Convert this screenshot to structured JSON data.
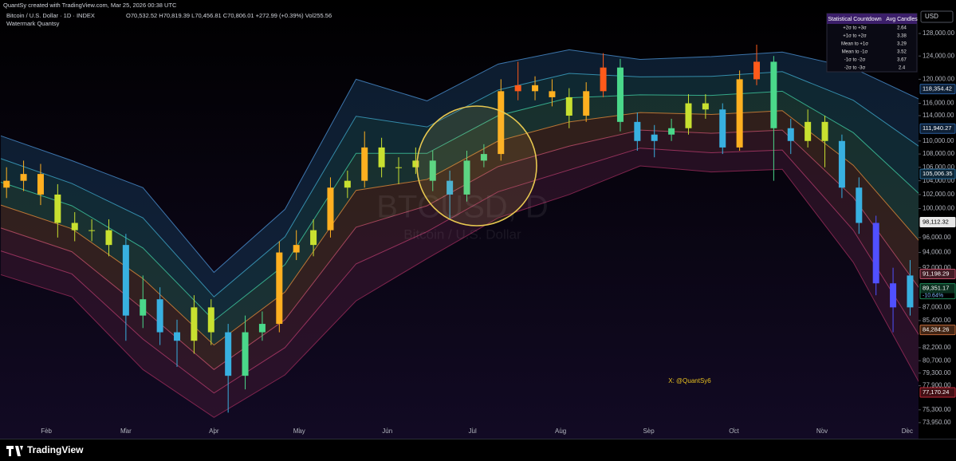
{
  "header": {
    "credit": "QuantSy created with TradingView.com, Mar 25, 2026 00:38 UTC",
    "symbol": "Bitcoin / U.S. Dollar · 1D · INDEX",
    "ohlc": "O70,532.52 H70,819.39 L70,456.81 C70,806.01 +272.99 (+0.39%) Vol255.56",
    "indicator": "Watermark Quantsy"
  },
  "watermark": {
    "symbol": "BTCUSD, D",
    "name": "Bitcoin / U.S. Dollar"
  },
  "currency": "USD",
  "annotation": "X: @QuantSy6",
  "footer": {
    "brand": "TradingView"
  },
  "table": {
    "headers": [
      "Statistical Countdown",
      "Avg Candles"
    ],
    "rows": [
      [
        "+2σ to +3σ",
        2.64
      ],
      [
        "+1σ to +2σ",
        3.38
      ],
      [
        "Mean to +1σ",
        3.29
      ],
      [
        "Mean to -1σ",
        3.52
      ],
      [
        "-1σ to -2σ",
        3.67
      ],
      [
        "-2σ to -3σ",
        2.4
      ]
    ]
  },
  "chart_data": {
    "type": "candlestick",
    "log": true,
    "grid": false,
    "xlim": [
      14.7,
      337.4
    ],
    "xticks": [
      {
        "value": 31,
        "label": "Feb"
      },
      {
        "value": 59,
        "label": "Mar"
      },
      {
        "value": 90,
        "label": "Apr"
      },
      {
        "value": 120,
        "label": "May"
      },
      {
        "value": 151,
        "label": "Jun"
      },
      {
        "value": 181,
        "label": "Jul"
      },
      {
        "value": 212,
        "label": "Aug"
      },
      {
        "value": 243,
        "label": "Sep"
      },
      {
        "value": 273,
        "label": "Oct"
      },
      {
        "value": 304,
        "label": "Nov"
      },
      {
        "value": 334,
        "label": "Dec"
      }
    ],
    "ylim": [
      72460,
      134190
    ],
    "yticks": [
      {
        "value": 128000,
        "label": "128,000.00"
      },
      {
        "value": 124000,
        "label": "124,000.00"
      },
      {
        "value": 120000,
        "label": "120,000.00"
      },
      {
        "value": 116000,
        "label": "116,000.00"
      },
      {
        "value": 114000,
        "label": "114,000.00"
      },
      {
        "value": 110000,
        "label": "110,000.00"
      },
      {
        "value": 108000,
        "label": "108,000.00"
      },
      {
        "value": 106000,
        "label": "106,000.00"
      },
      {
        "value": 104000,
        "label": "104,000.00"
      },
      {
        "value": 102000,
        "label": "102,000.00"
      },
      {
        "value": 100000,
        "label": "100,000.00"
      },
      {
        "value": 96000,
        "label": "96,000.00"
      },
      {
        "value": 94000,
        "label": "94,000.00"
      },
      {
        "value": 92000,
        "label": "92,000.00"
      },
      {
        "value": 87000,
        "label": "87,000.00"
      },
      {
        "value": 85400,
        "label": "85,400.00"
      },
      {
        "value": 82200,
        "label": "82,200.00"
      },
      {
        "value": 80700,
        "label": "80,700.00"
      },
      {
        "value": 79300,
        "label": "79,300.00"
      },
      {
        "value": 77900,
        "label": "77,900.00"
      },
      {
        "value": 75300,
        "label": "75,300.00"
      },
      {
        "value": 73950,
        "label": "73,950.00"
      }
    ],
    "x": [
      17,
      23,
      29,
      35,
      41,
      47,
      53,
      59,
      65,
      71,
      77,
      83,
      89,
      95,
      101,
      107,
      113,
      119,
      125,
      131,
      137,
      143,
      149,
      155,
      161,
      167,
      173,
      179,
      185,
      191,
      197,
      203,
      209,
      215,
      221,
      227,
      233,
      239,
      245,
      251,
      257,
      263,
      269,
      275,
      281,
      287,
      293,
      299,
      305,
      311,
      317,
      323,
      329,
      335
    ],
    "open": [
      103000,
      104000,
      105000,
      102000,
      98000,
      97000,
      97000,
      95000,
      86000,
      88000,
      84000,
      83000,
      87000,
      84000,
      79000,
      84000,
      85000,
      94000,
      95000,
      97000,
      103000,
      104000,
      109000,
      106000,
      106000,
      107000,
      104000,
      102000,
      107000,
      108000,
      118000,
      119000,
      118000,
      117000,
      114000,
      118000,
      122000,
      113000,
      110000,
      111000,
      112000,
      116000,
      115000,
      109000,
      120000,
      123000,
      112000,
      110000,
      113000,
      110000,
      103000,
      98000,
      90000,
      87000
    ],
    "high": [
      106000,
      107000,
      106500,
      103500,
      99500,
      98500,
      98500,
      96500,
      91000,
      89500,
      85500,
      88500,
      88000,
      85000,
      86000,
      86500,
      95500,
      97000,
      98500,
      104500,
      105500,
      111500,
      110500,
      107500,
      109000,
      108500,
      105500,
      108500,
      109500,
      120000,
      123000,
      120500,
      120000,
      118500,
      119500,
      124500,
      123500,
      114500,
      112500,
      113500,
      117500,
      117500,
      116000,
      121500,
      126000,
      124000,
      113500,
      115000,
      114000,
      111000,
      104500,
      99000,
      92000,
      93000
    ],
    "low": [
      101500,
      102500,
      100500,
      96000,
      95500,
      95500,
      93500,
      83000,
      84500,
      82500,
      80000,
      81500,
      82500,
      75000,
      77500,
      83000,
      84000,
      93000,
      93500,
      96000,
      101500,
      103000,
      104500,
      103500,
      105000,
      102500,
      98500,
      101000,
      106000,
      107000,
      116500,
      116500,
      115500,
      112000,
      113000,
      117000,
      111500,
      108500,
      107500,
      110000,
      111000,
      113500,
      108000,
      108500,
      119000,
      104000,
      108000,
      109000,
      106000,
      101500,
      96500,
      88500,
      84000,
      86000
    ],
    "close": [
      104000,
      105000,
      102000,
      98000,
      97000,
      97000,
      95000,
      86000,
      88000,
      84000,
      83000,
      87000,
      84000,
      79000,
      84000,
      85000,
      94000,
      95000,
      97000,
      103000,
      104000,
      109000,
      106000,
      106000,
      107000,
      104000,
      102000,
      107000,
      108000,
      118000,
      119000,
      118000,
      117000,
      114000,
      118000,
      122000,
      113000,
      110000,
      111000,
      112000,
      116000,
      115000,
      109000,
      120000,
      123000,
      112000,
      110000,
      113000,
      110000,
      103000,
      98000,
      90000,
      87000,
      91000
    ],
    "zone_colors": [
      "#ff2a1a",
      "#ff5a1a",
      "#ffb020",
      "#c8e030",
      "#4ad88a",
      "#38b0e0",
      "#5050ff",
      "#8a3cff"
    ],
    "band_x": [
      15,
      40,
      65,
      90,
      115,
      140,
      165,
      190,
      215,
      240,
      265,
      290,
      315,
      339
    ],
    "bands": [
      {
        "color": "#4a8fd0",
        "fill": "#14304d",
        "values": [
          110800,
          107000,
          103000,
          91400,
          99900,
          120000,
          116400,
          122600,
          125100,
          123400,
          123900,
          124700,
          121900,
          116500
        ]
      },
      {
        "color": "#3fa8c9",
        "fill": "#17434f",
        "values": [
          107300,
          103600,
          98700,
          88300,
          96100,
          113900,
          112200,
          118200,
          121000,
          120400,
          120500,
          121300,
          116500,
          108900
        ]
      },
      {
        "color": "#3fc9a0",
        "fill": "#244f46",
        "values": [
          103800,
          100400,
          94600,
          85400,
          92400,
          108100,
          108100,
          114000,
          116900,
          117400,
          117300,
          118000,
          111300,
          101800
        ]
      },
      {
        "color": "#e08a3a",
        "fill": "#4d3226",
        "values": [
          100500,
          97200,
          90600,
          82500,
          88900,
          102600,
          104200,
          110000,
          113000,
          114500,
          114200,
          114800,
          106300,
          95200
        ]
      },
      {
        "color": "#c0506a",
        "fill": "#44202f",
        "values": [
          97300,
          94100,
          86800,
          79700,
          85500,
          97400,
          100400,
          106100,
          109200,
          111700,
          111200,
          111700,
          101600,
          89000
        ]
      },
      {
        "color": "#b03a6a",
        "fill": "#3a1830",
        "values": [
          94200,
          91200,
          83200,
          77100,
          82200,
          92500,
          96800,
          102400,
          105600,
          108900,
          108200,
          108600,
          97000,
          83200
        ]
      },
      {
        "color": "#9a2a5a",
        "values": [
          91100,
          88300,
          79700,
          74500,
          79100,
          87800,
          93200,
          98700,
          102000,
          106200,
          105300,
          105700,
          92700,
          77800
        ]
      }
    ],
    "axis_markers": [
      {
        "value": 118354.42,
        "label": "118,354.42",
        "color": "#2a5f9e"
      },
      {
        "value": 111940.27,
        "label": "111,940.27",
        "color": "#2a5f9e"
      },
      {
        "value": 105006.35,
        "label": "105,006.35",
        "color": "#2a6f9e"
      },
      {
        "value": 98112.32,
        "label": "98,112.32",
        "color": "#e8e8e8"
      },
      {
        "value": 91198.29,
        "label": "91,198.29",
        "color": "#c0506a"
      },
      {
        "value": 89351.17,
        "label": "89,351.17",
        "sublabel": "-10.64%",
        "color": "#1f8a5a"
      },
      {
        "value": 84284.26,
        "label": "84,284.26",
        "color": "#c06a3a"
      },
      {
        "value": 77170.24,
        "label": "77,170.24",
        "color": "#c02a3a"
      }
    ]
  }
}
